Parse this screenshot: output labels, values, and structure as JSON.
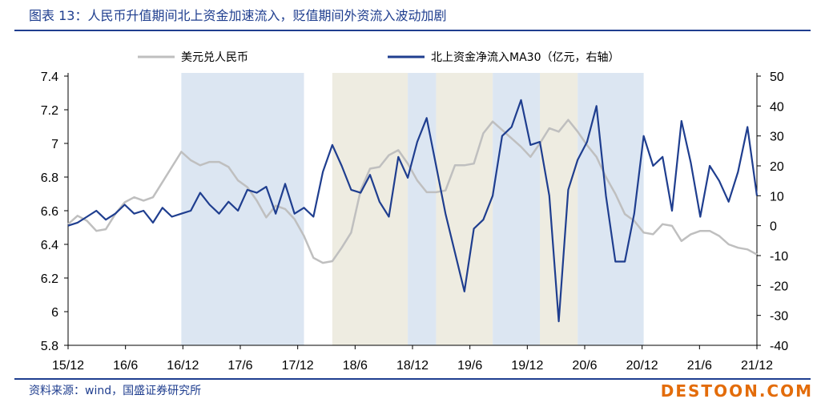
{
  "title": "图表 13：人民币升值期间北上资金加速流入，贬值期间外资流入波动加剧",
  "source": "资料来源：wind，国盛证券研究所",
  "watermark": "DESTOON.COM",
  "colors": {
    "cny": "#bfbfbf",
    "flow": "#1f3e8f",
    "shade_blue": "#dce6f2",
    "shade_beige": "#eeece1"
  },
  "chart_data": {
    "type": "line",
    "x_labels": [
      "15/12",
      "16/6",
      "16/12",
      "17/6",
      "17/12",
      "18/6",
      "18/12",
      "19/6",
      "19/12",
      "20/6",
      "20/12",
      "21/6",
      "21/12"
    ],
    "y_left": {
      "ticks": [
        "7.4",
        "7.2",
        "7",
        "6.8",
        "6.6",
        "6.4",
        "6.2",
        "6",
        "5.8"
      ],
      "range": [
        5.8,
        7.4
      ]
    },
    "y_right": {
      "ticks": [
        "50",
        "40",
        "30",
        "20",
        "10",
        "0",
        "-10",
        "-20",
        "-30",
        "-40"
      ],
      "range": [
        -40,
        50
      ]
    },
    "legend": "top",
    "shaded_periods": [
      {
        "start": "2016-12",
        "end": "2018-01",
        "kind": "appreciation"
      },
      {
        "start": "2018-04",
        "end": "2018-12",
        "kind": "depreciation"
      },
      {
        "start": "2018-12",
        "end": "2019-03",
        "kind": "appreciation"
      },
      {
        "start": "2019-03",
        "end": "2019-09",
        "kind": "depreciation"
      },
      {
        "start": "2019-09",
        "end": "2020-02",
        "kind": "appreciation"
      },
      {
        "start": "2020-02",
        "end": "2020-06",
        "kind": "depreciation"
      },
      {
        "start": "2020-06",
        "end": "2021-01",
        "kind": "appreciation"
      }
    ],
    "series": [
      {
        "name": "美元兑人民币",
        "axis": "left",
        "color": "#bfbfbf",
        "points": [
          [
            "2015-12",
            6.52
          ],
          [
            "2016-01",
            6.57
          ],
          [
            "2016-02",
            6.54
          ],
          [
            "2016-03",
            6.48
          ],
          [
            "2016-04",
            6.49
          ],
          [
            "2016-05",
            6.58
          ],
          [
            "2016-06",
            6.65
          ],
          [
            "2016-07",
            6.68
          ],
          [
            "2016-08",
            6.66
          ],
          [
            "2016-09",
            6.68
          ],
          [
            "2016-10",
            6.77
          ],
          [
            "2016-11",
            6.86
          ],
          [
            "2016-12",
            6.95
          ],
          [
            "2017-01",
            6.9
          ],
          [
            "2017-02",
            6.87
          ],
          [
            "2017-03",
            6.89
          ],
          [
            "2017-04",
            6.89
          ],
          [
            "2017-05",
            6.86
          ],
          [
            "2017-06",
            6.78
          ],
          [
            "2017-07",
            6.74
          ],
          [
            "2017-08",
            6.66
          ],
          [
            "2017-09",
            6.56
          ],
          [
            "2017-10",
            6.63
          ],
          [
            "2017-11",
            6.61
          ],
          [
            "2017-12",
            6.55
          ],
          [
            "2018-01",
            6.45
          ],
          [
            "2018-02",
            6.32
          ],
          [
            "2018-03",
            6.29
          ],
          [
            "2018-04",
            6.3
          ],
          [
            "2018-05",
            6.38
          ],
          [
            "2018-06",
            6.47
          ],
          [
            "2018-07",
            6.72
          ],
          [
            "2018-08",
            6.85
          ],
          [
            "2018-09",
            6.86
          ],
          [
            "2018-10",
            6.93
          ],
          [
            "2018-11",
            6.96
          ],
          [
            "2018-12",
            6.88
          ],
          [
            "2019-01",
            6.78
          ],
          [
            "2019-02",
            6.71
          ],
          [
            "2019-03",
            6.71
          ],
          [
            "2019-04",
            6.72
          ],
          [
            "2019-05",
            6.87
          ],
          [
            "2019-06",
            6.87
          ],
          [
            "2019-07",
            6.88
          ],
          [
            "2019-08",
            7.06
          ],
          [
            "2019-09",
            7.13
          ],
          [
            "2019-10",
            7.08
          ],
          [
            "2019-11",
            7.03
          ],
          [
            "2019-12",
            6.98
          ],
          [
            "2020-01",
            6.92
          ],
          [
            "2020-02",
            7.0
          ],
          [
            "2020-03",
            7.09
          ],
          [
            "2020-04",
            7.07
          ],
          [
            "2020-05",
            7.14
          ],
          [
            "2020-06",
            7.07
          ],
          [
            "2020-07",
            6.99
          ],
          [
            "2020-08",
            6.92
          ],
          [
            "2020-09",
            6.8
          ],
          [
            "2020-10",
            6.7
          ],
          [
            "2020-11",
            6.58
          ],
          [
            "2020-12",
            6.54
          ],
          [
            "2021-01",
            6.47
          ],
          [
            "2021-02",
            6.46
          ],
          [
            "2021-03",
            6.52
          ],
          [
            "2021-04",
            6.51
          ],
          [
            "2021-05",
            6.42
          ],
          [
            "2021-06",
            6.46
          ],
          [
            "2021-07",
            6.48
          ],
          [
            "2021-08",
            6.48
          ],
          [
            "2021-09",
            6.45
          ],
          [
            "2021-10",
            6.4
          ],
          [
            "2021-11",
            6.38
          ],
          [
            "2021-12",
            6.37
          ],
          [
            "2022-01",
            6.34
          ]
        ]
      },
      {
        "name": "北上资金净流入MA30（亿元，右轴）",
        "axis": "right",
        "color": "#1f3e8f",
        "points": [
          [
            "2015-12",
            0
          ],
          [
            "2016-01",
            1
          ],
          [
            "2016-02",
            3
          ],
          [
            "2016-03",
            5
          ],
          [
            "2016-04",
            2
          ],
          [
            "2016-05",
            4
          ],
          [
            "2016-06",
            7
          ],
          [
            "2016-07",
            4
          ],
          [
            "2016-08",
            5
          ],
          [
            "2016-09",
            1
          ],
          [
            "2016-10",
            6
          ],
          [
            "2016-11",
            3
          ],
          [
            "2016-12",
            4
          ],
          [
            "2017-01",
            5
          ],
          [
            "2017-02",
            11
          ],
          [
            "2017-03",
            7
          ],
          [
            "2017-04",
            4
          ],
          [
            "2017-05",
            8
          ],
          [
            "2017-06",
            5
          ],
          [
            "2017-07",
            12
          ],
          [
            "2017-08",
            11
          ],
          [
            "2017-09",
            13
          ],
          [
            "2017-10",
            4
          ],
          [
            "2017-11",
            14
          ],
          [
            "2017-12",
            4
          ],
          [
            "2018-01",
            6
          ],
          [
            "2018-02",
            3
          ],
          [
            "2018-03",
            18
          ],
          [
            "2018-04",
            27
          ],
          [
            "2018-05",
            20
          ],
          [
            "2018-06",
            12
          ],
          [
            "2018-07",
            11
          ],
          [
            "2018-08",
            17
          ],
          [
            "2018-09",
            8
          ],
          [
            "2018-10",
            3
          ],
          [
            "2018-11",
            23
          ],
          [
            "2018-12",
            16
          ],
          [
            "2019-01",
            28
          ],
          [
            "2019-02",
            36
          ],
          [
            "2019-03",
            20
          ],
          [
            "2019-04",
            4
          ],
          [
            "2019-05",
            -9
          ],
          [
            "2019-06",
            -22
          ],
          [
            "2019-07",
            -1
          ],
          [
            "2019-08",
            2
          ],
          [
            "2019-09",
            10
          ],
          [
            "2019-10",
            30
          ],
          [
            "2019-11",
            33
          ],
          [
            "2019-12",
            42
          ],
          [
            "2020-01",
            27
          ],
          [
            "2020-02",
            28
          ],
          [
            "2020-03",
            10
          ],
          [
            "2020-04",
            -32
          ],
          [
            "2020-05",
            12
          ],
          [
            "2020-06",
            22
          ],
          [
            "2020-07",
            28
          ],
          [
            "2020-08",
            40
          ],
          [
            "2020-09",
            10
          ],
          [
            "2020-10",
            -12
          ],
          [
            "2020-11",
            -12
          ],
          [
            "2020-12",
            4
          ],
          [
            "2021-01",
            30
          ],
          [
            "2021-02",
            20
          ],
          [
            "2021-03",
            23
          ],
          [
            "2021-04",
            5
          ],
          [
            "2021-05",
            35
          ],
          [
            "2021-06",
            21
          ],
          [
            "2021-07",
            3
          ],
          [
            "2021-08",
            20
          ],
          [
            "2021-09",
            15
          ],
          [
            "2021-10",
            8
          ],
          [
            "2021-11",
            18
          ],
          [
            "2021-12",
            33
          ],
          [
            "2022-01",
            10
          ]
        ]
      }
    ]
  }
}
